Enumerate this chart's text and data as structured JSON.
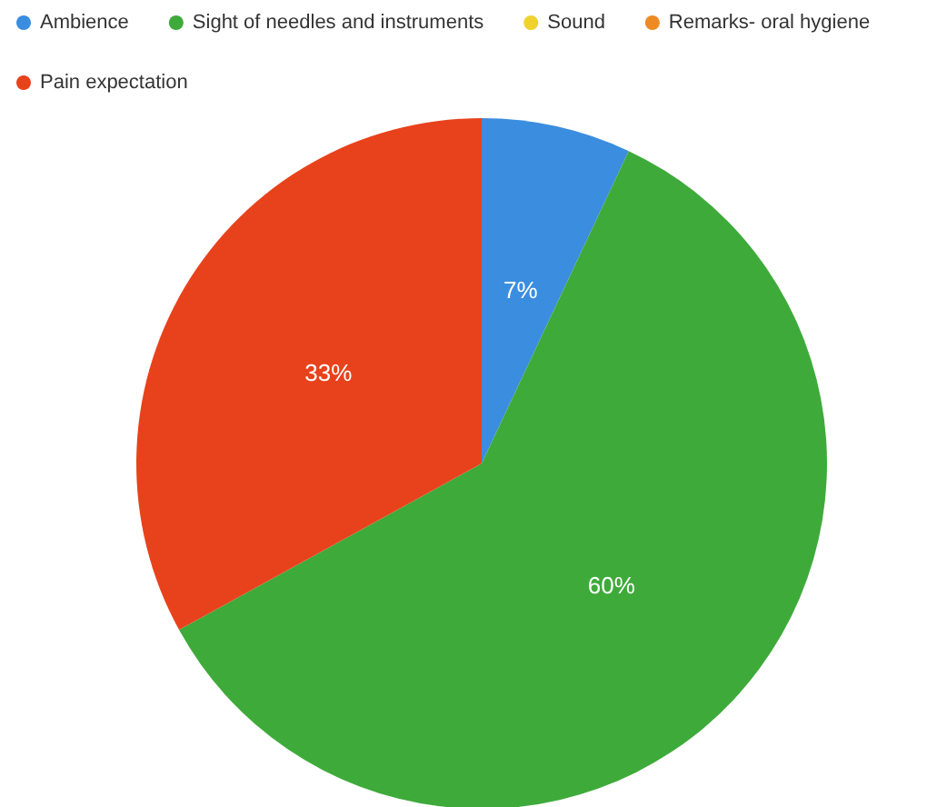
{
  "chart_data": {
    "type": "pie",
    "categories": [
      "Ambience",
      "Sight of needles and instruments",
      "Sound",
      "Remarks- oral hygiene",
      "Pain expectation"
    ],
    "values": [
      7,
      60,
      0,
      0,
      33
    ],
    "colors": [
      "#3b8ddf",
      "#3eaa3a",
      "#f0d22e",
      "#ef8a23",
      "#e8421c"
    ],
    "value_labels": [
      "7%",
      "60%",
      null,
      null,
      "33%"
    ],
    "legend": "top"
  }
}
